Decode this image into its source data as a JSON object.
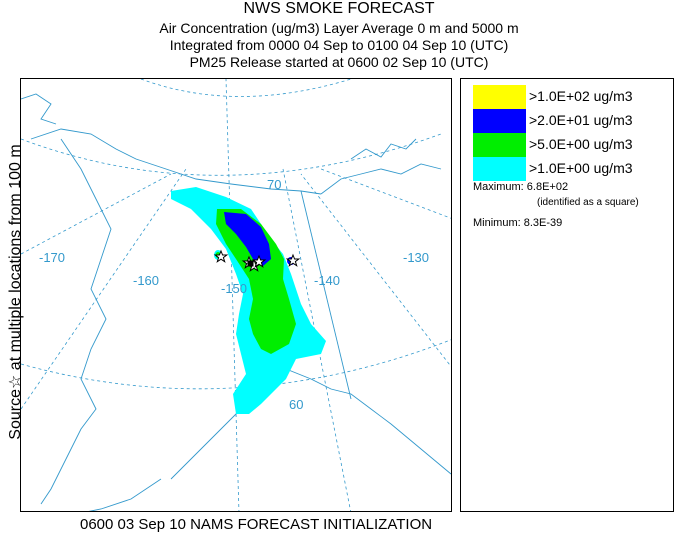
{
  "header": {
    "title": "NWS SMOKE FORECAST",
    "line2": "Air Concentration (ug/m3) Layer Average    0 m and  5000 m",
    "line3": "Integrated from 0000 04 Sep to 0100 04 Sep 10 (UTC)",
    "line4": "PM25 Release started at 0600 02 Sep 10 (UTC)"
  },
  "sidebar": {
    "text": "Source☆ at multiple locations   from   100 m"
  },
  "map": {
    "graticule_labels": {
      "lat70": "70",
      "lat60": "60",
      "lon170": "-170",
      "lon160": "-160",
      "lon150": "-150",
      "lon140": "-140",
      "lon130": "-130"
    }
  },
  "legend": {
    "items": [
      {
        "label": ">1.0E+02 ug/m3",
        "color": "#ffff00"
      },
      {
        "label": ">2.0E+01 ug/m3",
        "color": "#0000ff"
      },
      {
        "label": ">5.0E+00 ug/m3",
        "color": "#00ee00"
      },
      {
        "label": ">1.0E+00 ug/m3",
        "color": "#00ffff"
      }
    ],
    "maximum": "Maximum: 6.8E+02",
    "maximum_note": "(identified as a square)",
    "minimum": "Minimum: 8.3E-39"
  },
  "footer": {
    "text": "0600 03 Sep 10 NAMS FORECAST INITIALIZATION"
  },
  "colors": {
    "graticule": "#3399cc",
    "coast": "#3399cc",
    "text": "#000000"
  }
}
